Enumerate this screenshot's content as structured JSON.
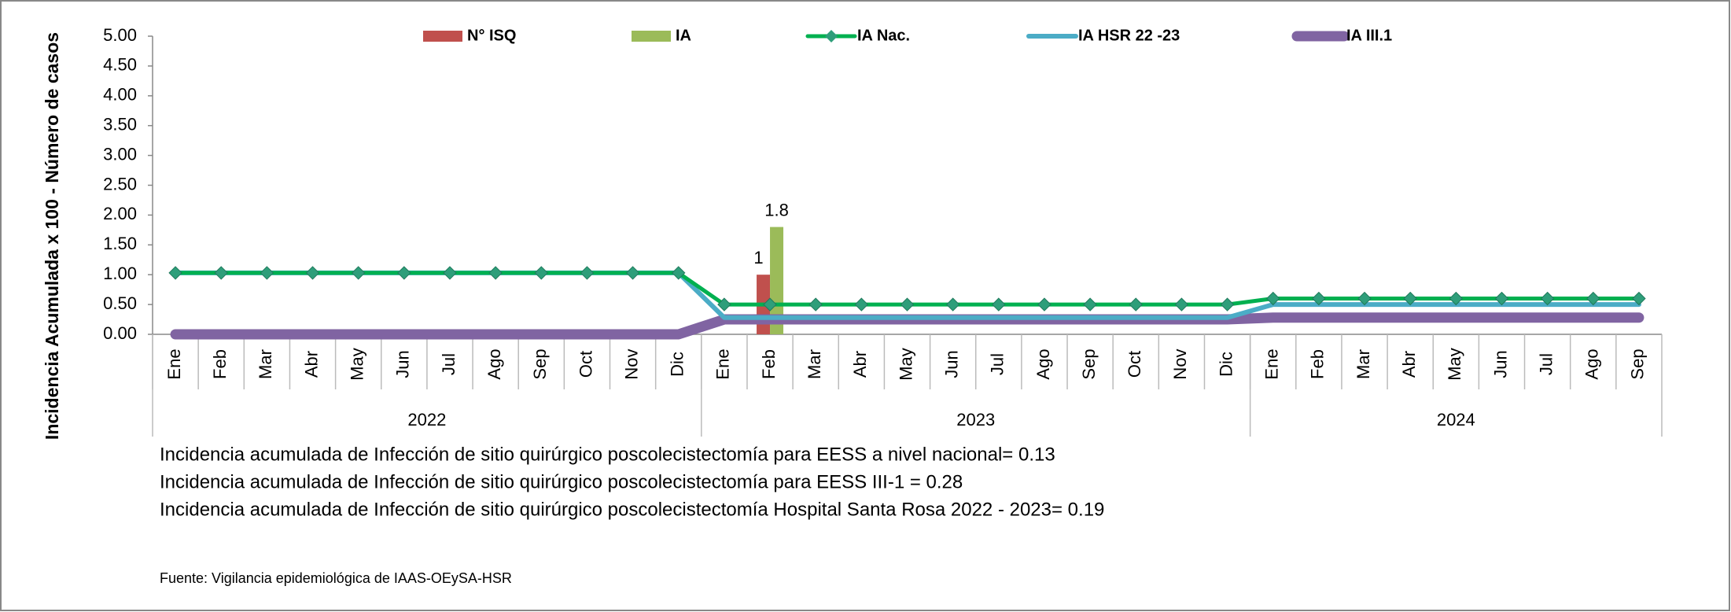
{
  "chart_data": {
    "type": "bar_line",
    "y_label": "Incidencia Acumulada x 100 - Número de casos",
    "categories": [
      "Ene",
      "Feb",
      "Mar",
      "Abr",
      "May",
      "Jun",
      "Jul",
      "Ago",
      "Sep",
      "Oct",
      "Nov",
      "Dic",
      "Ene",
      "Feb",
      "Mar",
      "Abr",
      "May",
      "Jun",
      "Jul",
      "Ago",
      "Sep",
      "Oct",
      "Nov",
      "Dic",
      "Ene",
      "Feb",
      "Mar",
      "Abr",
      "May",
      "Jun",
      "Jul",
      "Ago",
      "Sep"
    ],
    "years": [
      "2022",
      "2023",
      "2024"
    ],
    "ylim": [
      0,
      5
    ],
    "yticks": [
      {
        "value": 0,
        "label": "0.00"
      },
      {
        "value": 0.5,
        "label": "0.50"
      },
      {
        "value": 1,
        "label": "1.00"
      },
      {
        "value": 1.5,
        "label": "1.50"
      },
      {
        "value": 2,
        "label": "2.00"
      },
      {
        "value": 2.5,
        "label": "2.50"
      },
      {
        "value": 3,
        "label": "3.00"
      },
      {
        "value": 3.5,
        "label": "3.50"
      },
      {
        "value": 4,
        "label": "4.00"
      },
      {
        "value": 4.5,
        "label": "4.50"
      },
      {
        "value": 5,
        "label": "5.00"
      }
    ],
    "grid": false,
    "series": [
      {
        "name": "N° ISQ",
        "kind": "bar",
        "color": "#c0504d",
        "values": [
          null,
          null,
          null,
          null,
          null,
          null,
          null,
          null,
          null,
          null,
          null,
          null,
          null,
          1,
          null,
          null,
          null,
          null,
          null,
          null,
          null,
          null,
          null,
          null,
          null,
          null,
          null,
          null,
          null,
          null,
          null,
          null,
          null
        ]
      },
      {
        "name": "IA",
        "kind": "bar",
        "color": "#9bbb59",
        "values": [
          null,
          null,
          null,
          null,
          null,
          null,
          null,
          null,
          null,
          null,
          null,
          null,
          null,
          1.8,
          null,
          null,
          null,
          null,
          null,
          null,
          null,
          null,
          null,
          null,
          null,
          null,
          null,
          null,
          null,
          null,
          null,
          null,
          null
        ]
      },
      {
        "name": "IA  Nac.",
        "kind": "line_marker",
        "color": "#00b050",
        "values": [
          1.03,
          1.03,
          1.03,
          1.03,
          1.03,
          1.03,
          1.03,
          1.03,
          1.03,
          1.03,
          1.03,
          1.03,
          0.5,
          0.5,
          0.5,
          0.5,
          0.5,
          0.5,
          0.5,
          0.5,
          0.5,
          0.5,
          0.5,
          0.5,
          0.6,
          0.6,
          0.6,
          0.6,
          0.6,
          0.6,
          0.6,
          0.6,
          0.6
        ]
      },
      {
        "name": "IA  HSR 22 -23",
        "kind": "line",
        "color": "#4bacc6",
        "values": [
          1.03,
          1.03,
          1.03,
          1.03,
          1.03,
          1.03,
          1.03,
          1.03,
          1.03,
          1.03,
          1.03,
          1.03,
          0.28,
          0.28,
          0.28,
          0.28,
          0.28,
          0.28,
          0.28,
          0.28,
          0.28,
          0.28,
          0.28,
          0.28,
          0.5,
          0.5,
          0.5,
          0.5,
          0.5,
          0.5,
          0.5,
          0.5,
          0.5
        ]
      },
      {
        "name": "IA  III.1",
        "kind": "thick_line",
        "color": "#8064a2",
        "values": [
          0,
          0,
          0,
          0,
          0,
          0,
          0,
          0,
          0,
          0,
          0,
          0,
          0.25,
          0.25,
          0.25,
          0.25,
          0.25,
          0.25,
          0.25,
          0.25,
          0.25,
          0.25,
          0.25,
          0.25,
          0.28,
          0.28,
          0.28,
          0.28,
          0.28,
          0.28,
          0.28,
          0.28,
          0.28
        ]
      }
    ],
    "annotations": [
      "Incidencia acumulada de Infección de sitio quirúrgico poscolecistectomía para EESS a nivel nacional= 0.13",
      "Incidencia acumulada de Infección de sitio quirúrgico poscolecistectomía para EESS III-1 = 0.28",
      "Incidencia acumulada de Infección de sitio quirúrgico poscolecistectomía Hospital Santa Rosa 2022 - 2023= 0.19"
    ],
    "source": "Fuente: Vigilancia epidemiológica de IAAS-OEySA-HSR"
  }
}
